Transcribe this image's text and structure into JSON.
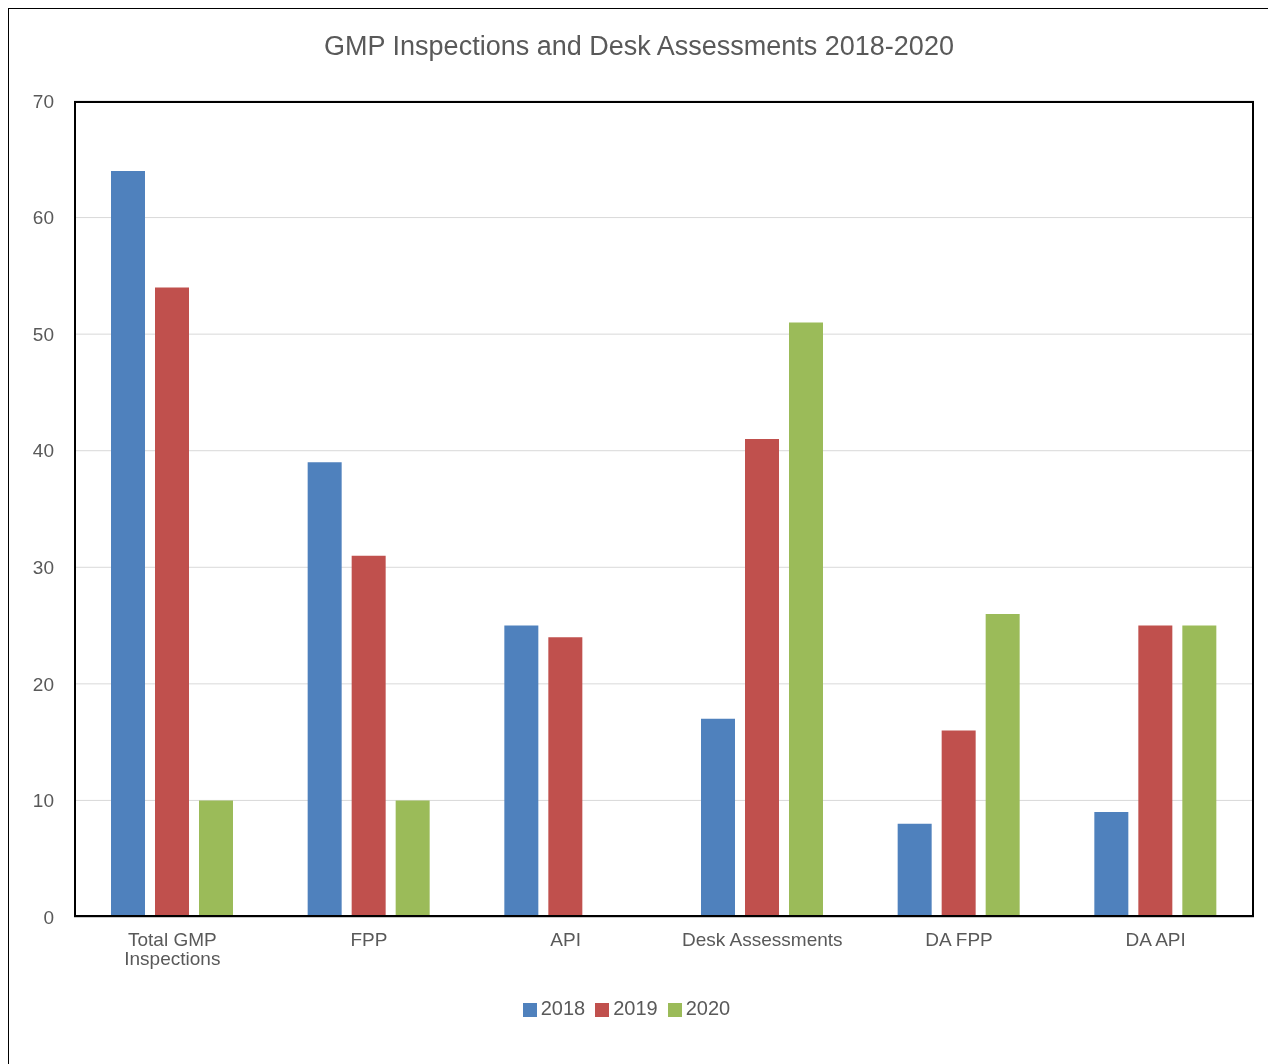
{
  "chart_data": {
    "type": "bar",
    "title": "GMP Inspections and Desk Assessments 2018-2020",
    "categories": [
      "Total GMP Inspections",
      "FPP",
      "API",
      "Desk Assessments",
      "DA FPP",
      "DA API"
    ],
    "series": [
      {
        "name": "2018",
        "color": "#4f81bd",
        "values": [
          64,
          39,
          25,
          17,
          8,
          9
        ]
      },
      {
        "name": "2019",
        "color": "#c0504d",
        "values": [
          54,
          31,
          24,
          41,
          16,
          25
        ]
      },
      {
        "name": "2020",
        "color": "#9bbb59",
        "values": [
          10,
          10,
          null,
          51,
          26,
          25
        ]
      }
    ],
    "ylim": [
      0,
      70
    ],
    "yticks": [
      0,
      10,
      20,
      30,
      40,
      50,
      60,
      70
    ],
    "grid": "y",
    "legend": "bottom"
  }
}
